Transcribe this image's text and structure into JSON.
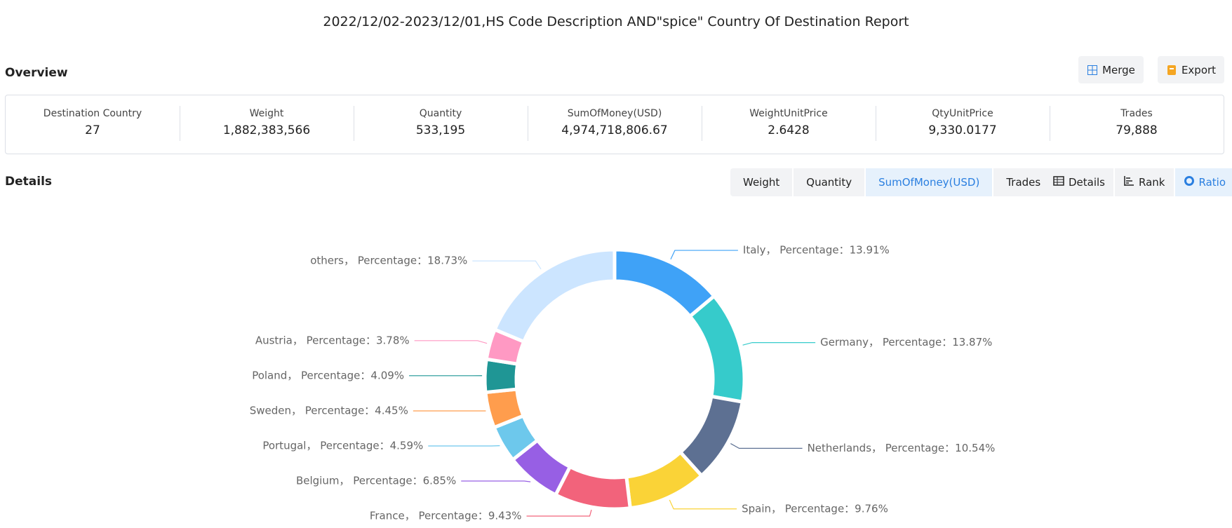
{
  "header": {
    "title": "2022/12/02-2023/12/01,HS Code Description AND\"spice\" Country Of Destination Report"
  },
  "overview": {
    "title": "Overview",
    "buttons": [
      "Merge",
      "Export"
    ],
    "stats": [
      {
        "label": "Destination Country",
        "value": "27"
      },
      {
        "label": "Weight",
        "value": "1,882,383,566"
      },
      {
        "label": "Quantity",
        "value": "533,195"
      },
      {
        "label": "SumOfMoney(USD)",
        "value": "4,974,718,806.67"
      },
      {
        "label": "WeightUnitPrice",
        "value": "2.6428"
      },
      {
        "label": "QtyUnitPrice",
        "value": "9,330.0177"
      },
      {
        "label": "Trades",
        "value": "79,888"
      }
    ]
  },
  "details": {
    "title": "Details",
    "metric_tabs": [
      "Weight",
      "Quantity",
      "SumOfMoney(USD)",
      "Trades"
    ],
    "active_metric": 2,
    "view_tabs": [
      "Details",
      "Rank",
      "Ratio"
    ],
    "active_view": 2
  },
  "chart_data": {
    "type": "pie",
    "values": [
      13.91,
      13.87,
      10.54,
      9.76,
      9.43,
      6.85,
      4.59,
      4.45,
      4.09,
      3.78,
      18.73
    ],
    "value_labels": [
      "Italy， Percentage：13.91%",
      "Germany， Percentage：13.87%",
      "Netherlands， Percentage：10.54%",
      "Spain， Percentage：9.76%",
      "France， Percentage：9.43%",
      "Belgium， Percentage：6.85%",
      "Portugal， Percentage：4.59%",
      "Sweden， Percentage：4.45%",
      "Poland， Percentage：4.09%",
      "Austria， Percentage：3.78%",
      "others， Percentage：18.73%"
    ],
    "colors": [
      "#3fa2f7",
      "#36cbcb",
      "#5d7092",
      "#fad337",
      "#f2637b",
      "#975fe4",
      "#6dc8ec",
      "#ff9d4d",
      "#1f9695",
      "#ff99c3",
      "#cce5ff"
    ]
  }
}
